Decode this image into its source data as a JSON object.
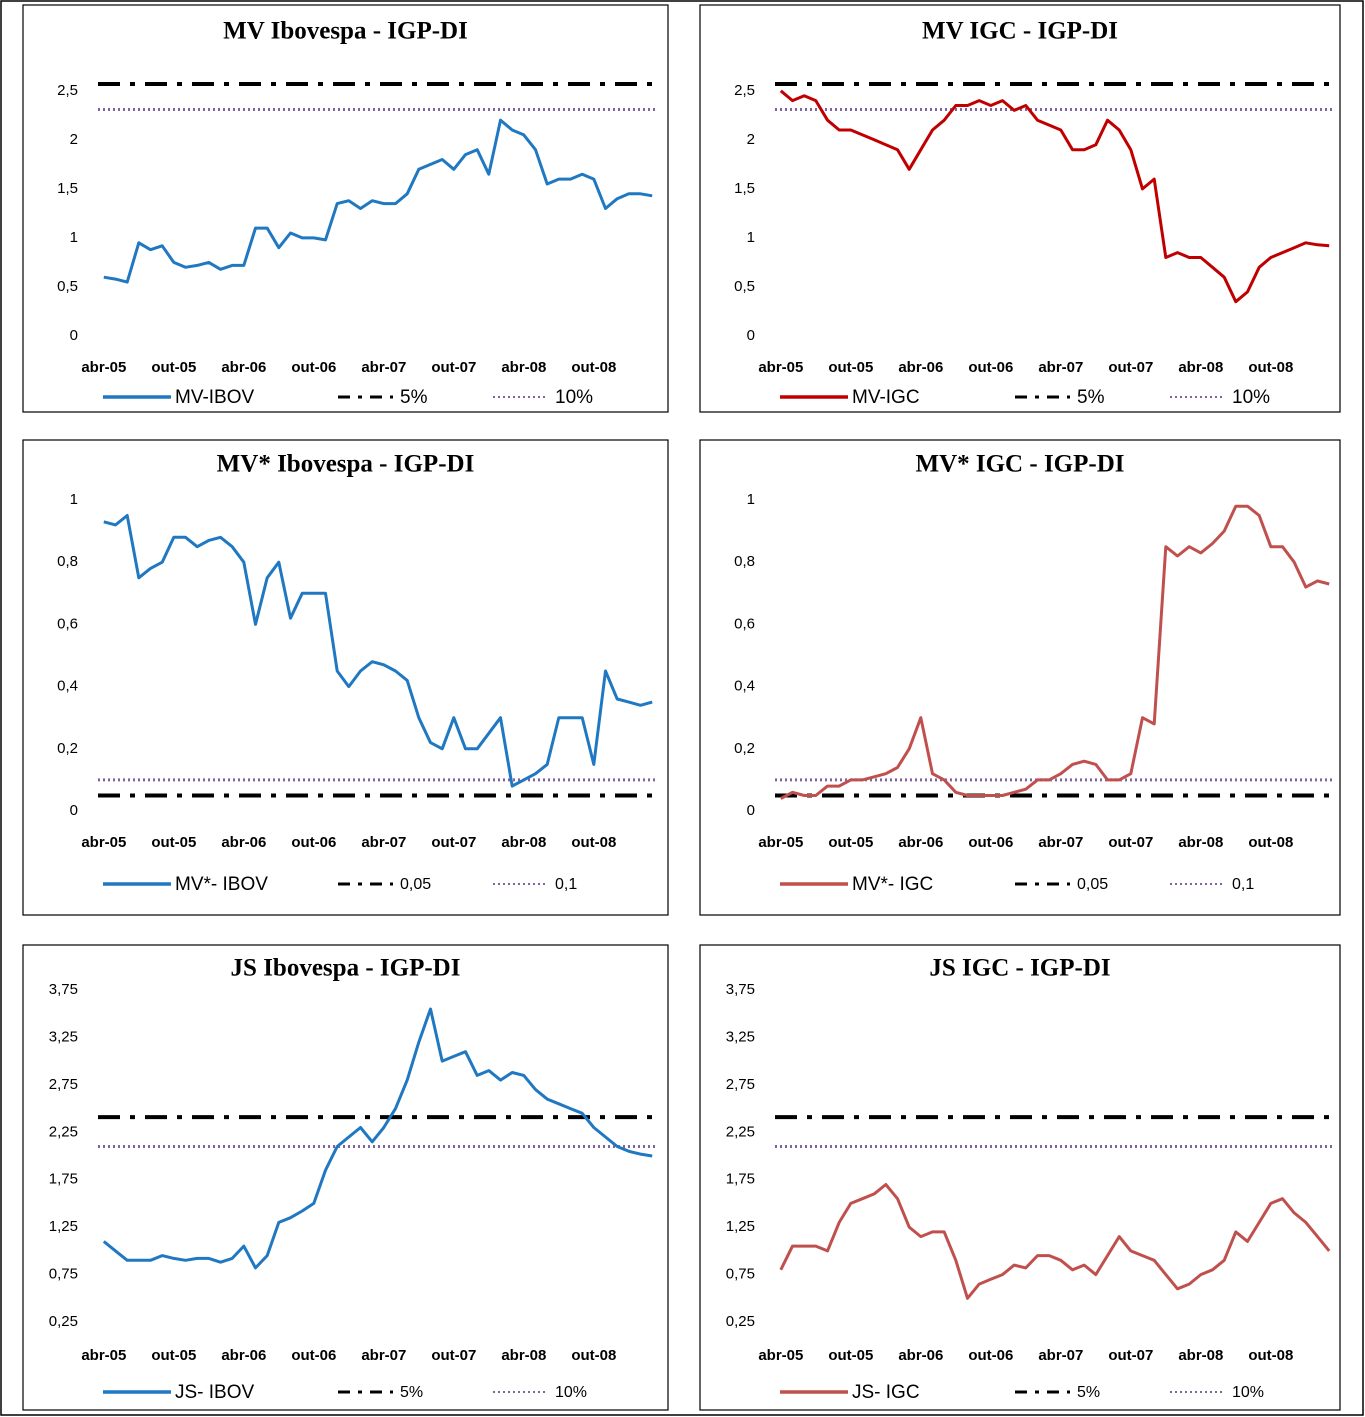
{
  "chart_data": [
    {
      "type": "line",
      "title": "MV  Ibovespa - IGP-DI",
      "categories": [
        "abr-05",
        null,
        null,
        null,
        null,
        null,
        "out-05",
        null,
        null,
        null,
        null,
        null,
        "abr-06",
        null,
        null,
        null,
        null,
        null,
        "out-06",
        null,
        null,
        null,
        null,
        null,
        "abr-07",
        null,
        null,
        null,
        null,
        null,
        "out-07",
        null,
        null,
        null,
        null,
        null,
        "abr-08",
        null,
        null,
        null,
        null,
        null,
        "out-08",
        null,
        null,
        null,
        null,
        null
      ],
      "series": [
        {
          "name": "MV-IBOV",
          "color": "#1f78c1",
          "values": [
            0.6,
            0.58,
            0.55,
            0.95,
            0.88,
            0.92,
            0.75,
            0.7,
            0.72,
            0.75,
            0.68,
            0.72,
            0.72,
            1.1,
            1.1,
            0.9,
            1.05,
            1.0,
            1.0,
            0.98,
            1.35,
            1.38,
            1.3,
            1.38,
            1.35,
            1.35,
            1.45,
            1.7,
            1.75,
            1.8,
            1.7,
            1.85,
            1.9,
            1.65,
            2.2,
            2.1,
            2.05,
            1.9,
            1.55,
            1.6,
            1.6,
            1.65,
            1.6,
            1.3,
            1.4,
            1.45,
            1.45,
            1.43
          ]
        }
      ],
      "ref_lines": [
        {
          "name": "5%",
          "value": 2.57,
          "color": "#000000",
          "style": "dash-dot"
        },
        {
          "name": "10%",
          "value": 2.31,
          "color": "#8064a2",
          "style": "dotted"
        }
      ],
      "ylim": [
        0,
        2.6
      ],
      "yticks": [
        0,
        {
          "value": 0.5,
          "label": "0,5"
        },
        1,
        {
          "value": 1.5,
          "label": "1,5"
        },
        2,
        {
          "value": 2.5,
          "label": "2,5"
        }
      ]
    },
    {
      "type": "line",
      "title": "MV  IGC - IGP-DI",
      "categories": [
        "abr-05",
        null,
        null,
        null,
        null,
        null,
        "out-05",
        null,
        null,
        null,
        null,
        null,
        "abr-06",
        null,
        null,
        null,
        null,
        null,
        "out-06",
        null,
        null,
        null,
        null,
        null,
        "abr-07",
        null,
        null,
        null,
        null,
        null,
        "out-07",
        null,
        null,
        null,
        null,
        null,
        "abr-08",
        null,
        null,
        null,
        null,
        null,
        "out-08",
        null,
        null,
        null,
        null,
        null
      ],
      "series": [
        {
          "name": "MV-IGC",
          "color": "#c00000",
          "values": [
            2.5,
            2.4,
            2.45,
            2.4,
            2.2,
            2.1,
            2.1,
            2.05,
            2.0,
            1.95,
            1.9,
            1.7,
            1.9,
            2.1,
            2.2,
            2.35,
            2.35,
            2.4,
            2.35,
            2.4,
            2.3,
            2.35,
            2.2,
            2.15,
            2.1,
            1.9,
            1.9,
            1.95,
            2.2,
            2.1,
            1.9,
            1.5,
            1.6,
            0.8,
            0.85,
            0.8,
            0.8,
            0.7,
            0.6,
            0.35,
            0.45,
            0.7,
            0.8,
            0.85,
            0.9,
            0.95,
            0.93,
            0.92
          ]
        }
      ],
      "ref_lines": [
        {
          "name": "5%",
          "value": 2.57,
          "color": "#000000",
          "style": "dash-dot"
        },
        {
          "name": "10%",
          "value": 2.31,
          "color": "#8064a2",
          "style": "dotted"
        }
      ],
      "ylim": [
        0,
        2.6
      ],
      "yticks": [
        0,
        {
          "value": 0.5,
          "label": "0,5"
        },
        1,
        {
          "value": 1.5,
          "label": "1,5"
        },
        2,
        {
          "value": 2.5,
          "label": "2,5"
        }
      ]
    },
    {
      "type": "line",
      "title": "MV*  Ibovespa - IGP-DI",
      "categories": [
        "abr-05",
        null,
        null,
        null,
        null,
        null,
        "out-05",
        null,
        null,
        null,
        null,
        null,
        "abr-06",
        null,
        null,
        null,
        null,
        null,
        "out-06",
        null,
        null,
        null,
        null,
        null,
        "abr-07",
        null,
        null,
        null,
        null,
        null,
        "out-07",
        null,
        null,
        null,
        null,
        null,
        "abr-08",
        null,
        null,
        null,
        null,
        null,
        "out-08",
        null,
        null,
        null,
        null,
        null
      ],
      "series": [
        {
          "name": "MV*- IBOV",
          "color": "#1f78c1",
          "values": [
            0.93,
            0.92,
            0.95,
            0.75,
            0.78,
            0.8,
            0.88,
            0.88,
            0.85,
            0.87,
            0.88,
            0.85,
            0.8,
            0.6,
            0.75,
            0.8,
            0.62,
            0.7,
            0.7,
            0.7,
            0.45,
            0.4,
            0.45,
            0.48,
            0.47,
            0.45,
            0.42,
            0.3,
            0.22,
            0.2,
            0.3,
            0.2,
            0.2,
            0.25,
            0.3,
            0.08,
            0.1,
            0.12,
            0.15,
            0.3,
            0.3,
            0.3,
            0.15,
            0.45,
            0.36,
            0.35,
            0.34,
            0.35
          ]
        }
      ],
      "ref_lines": [
        {
          "name": "0,05",
          "value": 0.05,
          "color": "#000000",
          "style": "dash-dot"
        },
        {
          "name": "0,1",
          "value": 0.1,
          "color": "#8064a2",
          "style": "dotted"
        }
      ],
      "ylim": [
        0,
        1
      ],
      "yticks": [
        0,
        {
          "value": 0.2,
          "label": "0,2"
        },
        {
          "value": 0.4,
          "label": "0,4"
        },
        {
          "value": 0.6,
          "label": "0,6"
        },
        {
          "value": 0.8,
          "label": "0,8"
        },
        1
      ]
    },
    {
      "type": "line",
      "title": "MV*  IGC - IGP-DI",
      "categories": [
        "abr-05",
        null,
        null,
        null,
        null,
        null,
        "out-05",
        null,
        null,
        null,
        null,
        null,
        "abr-06",
        null,
        null,
        null,
        null,
        null,
        "out-06",
        null,
        null,
        null,
        null,
        null,
        "abr-07",
        null,
        null,
        null,
        null,
        null,
        "out-07",
        null,
        null,
        null,
        null,
        null,
        "abr-08",
        null,
        null,
        null,
        null,
        null,
        "out-08",
        null,
        null,
        null,
        null,
        null
      ],
      "series": [
        {
          "name": "MV*- IGC",
          "color": "#c0504d",
          "values": [
            0.04,
            0.06,
            0.05,
            0.05,
            0.08,
            0.08,
            0.1,
            0.1,
            0.11,
            0.12,
            0.14,
            0.2,
            0.3,
            0.12,
            0.1,
            0.06,
            0.05,
            0.05,
            0.05,
            0.05,
            0.06,
            0.07,
            0.1,
            0.1,
            0.12,
            0.15,
            0.16,
            0.15,
            0.1,
            0.1,
            0.12,
            0.3,
            0.28,
            0.85,
            0.82,
            0.85,
            0.83,
            0.86,
            0.9,
            0.98,
            0.98,
            0.95,
            0.85,
            0.85,
            0.8,
            0.72,
            0.74,
            0.73
          ]
        }
      ],
      "ref_lines": [
        {
          "name": "0,05",
          "value": 0.05,
          "color": "#000000",
          "style": "dash-dot"
        },
        {
          "name": "0,1",
          "value": 0.1,
          "color": "#8064a2",
          "style": "dotted"
        }
      ],
      "ylim": [
        0,
        1
      ],
      "yticks": [
        0,
        {
          "value": 0.2,
          "label": "0,2"
        },
        {
          "value": 0.4,
          "label": "0,4"
        },
        {
          "value": 0.6,
          "label": "0,6"
        },
        {
          "value": 0.8,
          "label": "0,8"
        },
        1
      ]
    },
    {
      "type": "line",
      "title": "JS Ibovespa - IGP-DI",
      "categories": [
        "abr-05",
        null,
        null,
        null,
        null,
        null,
        "out-05",
        null,
        null,
        null,
        null,
        null,
        "abr-06",
        null,
        null,
        null,
        null,
        null,
        "out-06",
        null,
        null,
        null,
        null,
        null,
        "abr-07",
        null,
        null,
        null,
        null,
        null,
        "out-07",
        null,
        null,
        null,
        null,
        null,
        "abr-08",
        null,
        null,
        null,
        null,
        null,
        "out-08",
        null,
        null,
        null,
        null,
        null
      ],
      "series": [
        {
          "name": "JS- IBOV",
          "color": "#1f78c1",
          "values": [
            1.1,
            1.0,
            0.9,
            0.9,
            0.9,
            0.95,
            0.92,
            0.9,
            0.92,
            0.92,
            0.88,
            0.92,
            1.05,
            0.82,
            0.95,
            1.3,
            1.35,
            1.42,
            1.5,
            1.85,
            2.1,
            2.2,
            2.3,
            2.15,
            2.3,
            2.5,
            2.8,
            3.2,
            3.55,
            3.0,
            3.05,
            3.1,
            2.85,
            2.9,
            2.8,
            2.88,
            2.85,
            2.7,
            2.6,
            2.55,
            2.5,
            2.45,
            2.3,
            2.2,
            2.1,
            2.05,
            2.02,
            2.0
          ]
        }
      ],
      "ref_lines": [
        {
          "name": "5%",
          "value": 2.41,
          "color": "#000000",
          "style": "dash-dot"
        },
        {
          "name": "10%",
          "value": 2.1,
          "color": "#8064a2",
          "style": "dotted"
        }
      ],
      "ylim": [
        0.25,
        3.75
      ],
      "yticks": [
        {
          "value": 0.25,
          "label": "0,25"
        },
        {
          "value": 0.75,
          "label": "0,75"
        },
        {
          "value": 1.25,
          "label": "1,25"
        },
        {
          "value": 1.75,
          "label": "1,75"
        },
        {
          "value": 2.25,
          "label": "2,25"
        },
        {
          "value": 2.75,
          "label": "2,75"
        },
        {
          "value": 3.25,
          "label": "3,25"
        },
        {
          "value": 3.75,
          "label": "3,75"
        }
      ]
    },
    {
      "type": "line",
      "title": "JS  IGC - IGP-DI",
      "categories": [
        "abr-05",
        null,
        null,
        null,
        null,
        null,
        "out-05",
        null,
        null,
        null,
        null,
        null,
        "abr-06",
        null,
        null,
        null,
        null,
        null,
        "out-06",
        null,
        null,
        null,
        null,
        null,
        "abr-07",
        null,
        null,
        null,
        null,
        null,
        "out-07",
        null,
        null,
        null,
        null,
        null,
        "abr-08",
        null,
        null,
        null,
        null,
        null,
        "out-08",
        null,
        null,
        null,
        null,
        null
      ],
      "series": [
        {
          "name": "JS- IGC",
          "color": "#c0504d",
          "values": [
            0.8,
            1.05,
            1.05,
            1.05,
            1.0,
            1.3,
            1.5,
            1.55,
            1.6,
            1.7,
            1.55,
            1.25,
            1.15,
            1.2,
            1.2,
            0.9,
            0.5,
            0.65,
            0.7,
            0.75,
            0.85,
            0.82,
            0.95,
            0.95,
            0.9,
            0.8,
            0.85,
            0.75,
            0.95,
            1.15,
            1.0,
            0.95,
            0.9,
            0.75,
            0.6,
            0.65,
            0.75,
            0.8,
            0.9,
            1.2,
            1.1,
            1.3,
            1.5,
            1.55,
            1.4,
            1.3,
            1.15,
            1.0
          ]
        }
      ],
      "ref_lines": [
        {
          "name": "5%",
          "value": 2.41,
          "color": "#000000",
          "style": "dash-dot"
        },
        {
          "name": "10%",
          "value": 2.1,
          "color": "#8064a2",
          "style": "dotted"
        }
      ],
      "ylim": [
        0.25,
        3.75
      ],
      "yticks": [
        {
          "value": 0.25,
          "label": "0,25"
        },
        {
          "value": 0.75,
          "label": "0,75"
        },
        {
          "value": 1.25,
          "label": "1,25"
        },
        {
          "value": 1.75,
          "label": "1,75"
        },
        {
          "value": 2.25,
          "label": "2,25"
        },
        {
          "value": 2.75,
          "label": "2,75"
        },
        {
          "value": 3.25,
          "label": "3,25"
        },
        {
          "value": 3.75,
          "label": "3,75"
        }
      ]
    }
  ]
}
